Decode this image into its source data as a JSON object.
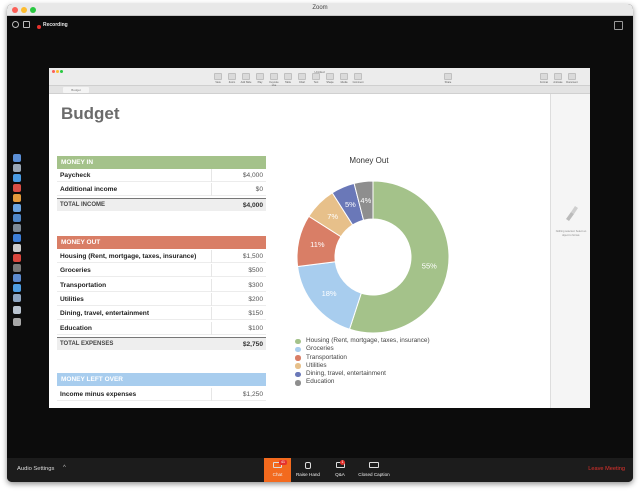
{
  "window": {
    "title": "Zoom"
  },
  "recording": {
    "label": "Recording"
  },
  "keynote": {
    "doc_title": "Untitled",
    "tab_label": "Budget",
    "toolbar": [
      "View",
      "Zoom",
      "Add Slide",
      "Play",
      "Keynote Live",
      "Table",
      "Chart",
      "Text",
      "Shape",
      "Media",
      "Comment",
      "Share",
      "Format",
      "Animate",
      "Document"
    ],
    "sidebar_text": "Nothing selected. Select an object to format."
  },
  "slide": {
    "title": "Budget",
    "money_in": {
      "header": "MONEY IN",
      "rows": [
        {
          "label": "Paycheck",
          "value": "$4,000"
        },
        {
          "label": "Additional income",
          "value": "$0"
        }
      ],
      "total": {
        "label": "TOTAL INCOME",
        "value": "$4,000"
      }
    },
    "money_out": {
      "header": "MONEY OUT",
      "rows": [
        {
          "label": "Housing (Rent, mortgage, taxes, insurance)",
          "value": "$1,500"
        },
        {
          "label": "Groceries",
          "value": "$500"
        },
        {
          "label": "Transportation",
          "value": "$300"
        },
        {
          "label": "Utilities",
          "value": "$200"
        },
        {
          "label": "Dining, travel, entertainment",
          "value": "$150"
        },
        {
          "label": "Education",
          "value": "$100"
        }
      ],
      "total": {
        "label": "TOTAL EXPENSES",
        "value": "$2,750"
      }
    },
    "money_left": {
      "header": "MONEY LEFT OVER",
      "rows": [
        {
          "label": "Income minus expenses",
          "value": "$1,250"
        }
      ]
    },
    "colors": {
      "money_in": "#a4c28a",
      "money_out": "#d97e66",
      "money_left": "#a8cdee"
    }
  },
  "chart_data": {
    "type": "pie",
    "title": "Money Out",
    "categories": [
      "Housing (Rent, mortgage, taxes, insurance)",
      "Groceries",
      "Transportation",
      "Utilities",
      "Dining, travel, entertainment",
      "Education"
    ],
    "values": [
      55,
      18,
      11,
      7,
      5,
      4
    ],
    "value_labels": [
      "55%",
      "18%",
      "11%",
      "7%",
      "5%",
      "4%"
    ],
    "colors": [
      "#a4c28a",
      "#a8cdee",
      "#d97e66",
      "#e7c08a",
      "#6a78b8",
      "#8e8e8e"
    ],
    "legend": "bottom"
  },
  "bottom_bar": {
    "audio": "Audio Settings",
    "chat": "Chat",
    "chat_badge": "41",
    "raise_hand": "Raise Hand",
    "qa": "Q&A",
    "qa_badge": "1",
    "closed_caption": "Closed Caption",
    "leave": "Leave Meeting"
  }
}
